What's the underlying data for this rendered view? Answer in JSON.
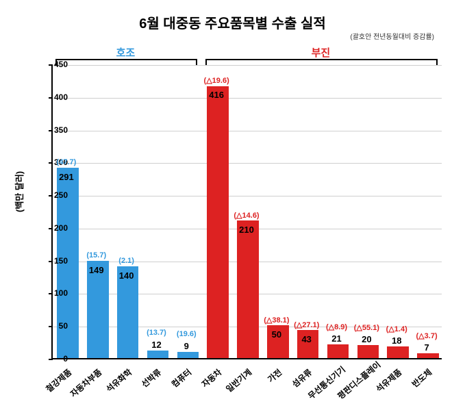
{
  "title": "6월 대중동 주요품목별 수출 실적",
  "subtitle": "(괄호안 전년동월대비 증감률)",
  "y_axis_title": "(백만 달러)",
  "groups": {
    "positive": {
      "label": "호조",
      "color": "#3399dd"
    },
    "negative": {
      "label": "부진",
      "color": "#dd2222"
    }
  },
  "chart": {
    "type": "bar",
    "ylim": [
      0,
      450
    ],
    "ytick_step": 50,
    "background_color": "#ffffff",
    "grid_color": "#cfcfcf",
    "bar_width_ratio": 0.72,
    "title_fontsize": 20,
    "label_fontsize": 12,
    "categories": [
      "철강제품",
      "자동차부품",
      "석유화학",
      "선박류",
      "컴퓨터",
      "자동차",
      "일반기계",
      "가전",
      "섬유류",
      "무선통신기기",
      "평판디스플레이",
      "석유제품",
      "반도체"
    ],
    "values": [
      291,
      149,
      140,
      12,
      9,
      416,
      210,
      50,
      43,
      21,
      20,
      18,
      7
    ],
    "pct_labels": [
      "(47.7)",
      "(15.7)",
      "(2.1)",
      "(13.7)",
      "(19.6)",
      "(△19.6)",
      "(△14.6)",
      "(△38.1)",
      "(△27.1)",
      "(△8.9)",
      "(△55.1)",
      "(△1.4)",
      "(△3.7)"
    ],
    "series_group": [
      "positive",
      "positive",
      "positive",
      "positive",
      "positive",
      "negative",
      "negative",
      "negative",
      "negative",
      "negative",
      "negative",
      "negative",
      "negative"
    ],
    "bar_colors": [
      "#3399dd",
      "#3399dd",
      "#3399dd",
      "#3399dd",
      "#3399dd",
      "#dd2222",
      "#dd2222",
      "#dd2222",
      "#dd2222",
      "#dd2222",
      "#dd2222",
      "#dd2222",
      "#dd2222"
    ]
  }
}
